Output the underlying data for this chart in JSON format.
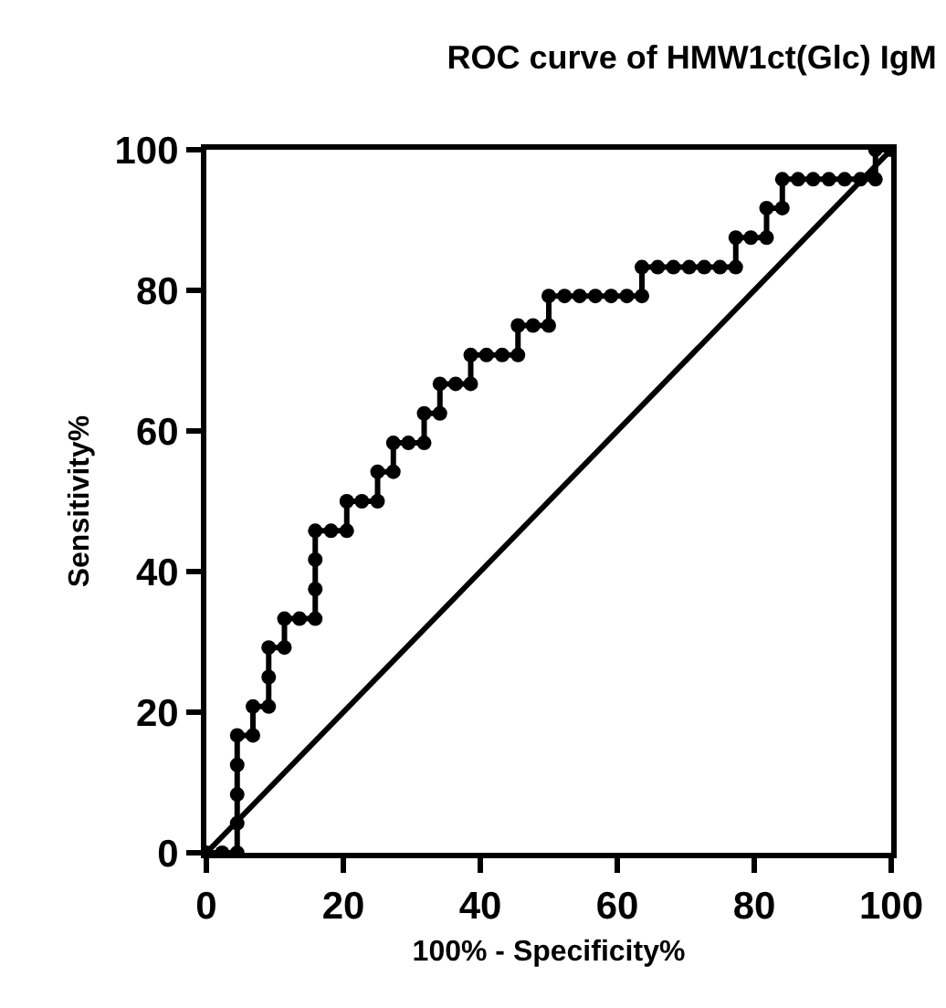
{
  "chart_data": {
    "type": "line",
    "title": "ROC curve of HMW1ct(Glc) IgM",
    "xlabel": "100% - Specificity%",
    "ylabel": "Sensitivity%",
    "xlim": [
      0,
      100
    ],
    "ylim": [
      0,
      100
    ],
    "xticks": [
      0,
      20,
      40,
      60,
      80,
      100
    ],
    "yticks": [
      0,
      20,
      40,
      60,
      80,
      100
    ],
    "legend": false,
    "series": [
      {
        "color": "#000000",
        "marker": "circle",
        "line_style": "solid",
        "x": [
          0,
          2.3,
          4.5,
          4.5,
          4.5,
          4.5,
          4.5,
          6.8,
          6.8,
          9.1,
          9.1,
          9.1,
          11.4,
          11.4,
          13.6,
          15.9,
          15.9,
          15.9,
          15.9,
          18.2,
          20.5,
          20.5,
          22.7,
          25,
          25,
          27.3,
          27.3,
          29.5,
          31.8,
          31.8,
          34.1,
          34.1,
          36.4,
          38.6,
          38.6,
          40.9,
          43.2,
          45.5,
          45.5,
          47.7,
          50,
          50,
          52.3,
          54.5,
          56.8,
          59.1,
          61.4,
          63.6,
          63.6,
          65.9,
          68.2,
          70.5,
          72.7,
          75,
          77.3,
          77.3,
          79.5,
          81.8,
          81.8,
          84.1,
          84.1,
          86.4,
          88.6,
          90.9,
          93.2,
          95.5,
          97.7,
          97.7,
          100
        ],
        "values": [
          0,
          0,
          0,
          4.2,
          8.3,
          12.5,
          16.7,
          16.7,
          20.8,
          20.8,
          25,
          29.2,
          29.2,
          33.3,
          33.3,
          33.3,
          37.5,
          41.7,
          45.8,
          45.8,
          45.8,
          50,
          50,
          50,
          54.2,
          54.2,
          58.3,
          58.3,
          58.3,
          62.5,
          62.5,
          66.7,
          66.7,
          66.7,
          70.8,
          70.8,
          70.8,
          70.8,
          75,
          75,
          75,
          79.2,
          79.2,
          79.2,
          79.2,
          79.2,
          79.2,
          79.2,
          83.3,
          83.3,
          83.3,
          83.3,
          83.3,
          83.3,
          83.3,
          87.5,
          87.5,
          87.5,
          91.7,
          91.7,
          95.8,
          95.8,
          95.8,
          95.8,
          95.8,
          95.8,
          95.8,
          100,
          100
        ]
      },
      {
        "color": "#000000",
        "marker": "none",
        "line_style": "solid",
        "x": [
          0,
          100
        ],
        "values": [
          0,
          100
        ]
      }
    ]
  }
}
